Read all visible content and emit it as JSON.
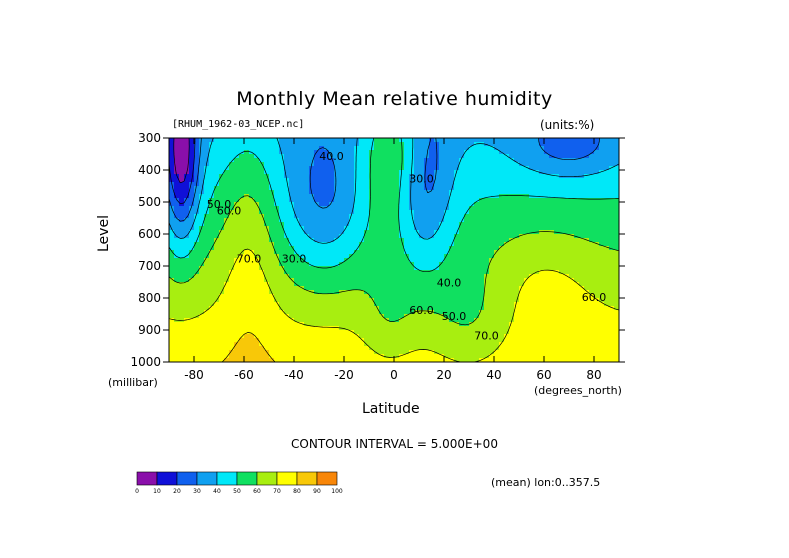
{
  "figure": {
    "title": "Monthly Mean relative humidity",
    "file_label": "[RHUM_1962-03_NCEP.nc]",
    "units_label": "(units:%)",
    "contour_interval": "CONTOUR INTERVAL = 5.000E+00",
    "mean_info": "(mean) lon:0..357.5"
  },
  "chart_data": {
    "type": "heatmap",
    "title": "Monthly Mean relative humidity",
    "xlabel": "Latitude",
    "xunits": "(degrees_north)",
    "ylabel": "Level",
    "yunits": "(millibar)",
    "xlim": [
      -90,
      90
    ],
    "ylim": [
      1000,
      300
    ],
    "x_ticks": [
      -80,
      -60,
      -40,
      -20,
      0,
      20,
      40,
      60,
      80
    ],
    "y_ticks": [
      300,
      400,
      500,
      600,
      700,
      800,
      900,
      1000
    ],
    "contour_labels": [
      {
        "text": "40.0",
        "lat": -25,
        "level": 360
      },
      {
        "text": "30.0",
        "lat": 11,
        "level": 430
      },
      {
        "text": "50.0",
        "lat": -70,
        "level": 510
      },
      {
        "text": "60.0",
        "lat": -66,
        "level": 530
      },
      {
        "text": "70.0",
        "lat": -58,
        "level": 680
      },
      {
        "text": "30.0",
        "lat": -40,
        "level": 680
      },
      {
        "text": "40.0",
        "lat": 22,
        "level": 755
      },
      {
        "text": "60.0",
        "lat": 11,
        "level": 840
      },
      {
        "text": "50.0",
        "lat": 24,
        "level": 860
      },
      {
        "text": "70.0",
        "lat": 37,
        "level": 920
      },
      {
        "text": "60.0",
        "lat": 80,
        "level": 800
      }
    ],
    "colorbar": {
      "levels": [
        0,
        10,
        20,
        30,
        40,
        50,
        60,
        70,
        80,
        90,
        100
      ],
      "colors": [
        "#8a0faa",
        "#1010d8",
        "#1060ee",
        "#10a0f0",
        "#00e8f8",
        "#10e060",
        "#a8ee10",
        "#ffff00",
        "#f8c808",
        "#f88608",
        "#f84808",
        "#ee0000"
      ]
    },
    "grid": false
  }
}
